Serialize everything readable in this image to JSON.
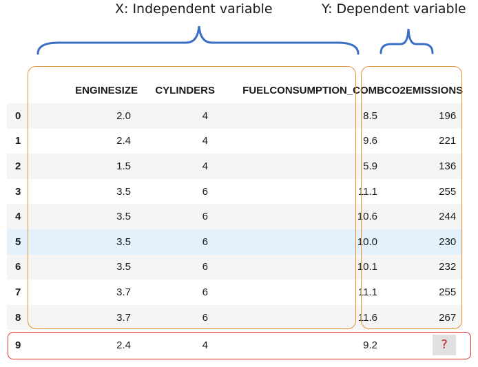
{
  "annotations": {
    "x_label": "X: Independent variable",
    "y_label": "Y: Dependent variable",
    "bracket_color": "#3a6fc4",
    "group_outline_color": "#e69138",
    "new_row_outline_color": "#e03131"
  },
  "table": {
    "columns": [
      "ENGINESIZE",
      "CYLINDERS",
      "FUELCONSUMPTION_COMB",
      "CO2EMISSIONS"
    ],
    "rows": [
      {
        "index": "0",
        "enginesize": "2.0",
        "cylinders": "4",
        "fuel": "8.5",
        "co2": "196"
      },
      {
        "index": "1",
        "enginesize": "2.4",
        "cylinders": "4",
        "fuel": "9.6",
        "co2": "221"
      },
      {
        "index": "2",
        "enginesize": "1.5",
        "cylinders": "4",
        "fuel": "5.9",
        "co2": "136"
      },
      {
        "index": "3",
        "enginesize": "3.5",
        "cylinders": "6",
        "fuel": "11.1",
        "co2": "255"
      },
      {
        "index": "4",
        "enginesize": "3.5",
        "cylinders": "6",
        "fuel": "10.6",
        "co2": "244"
      },
      {
        "index": "5",
        "enginesize": "3.5",
        "cylinders": "6",
        "fuel": "10.0",
        "co2": "230"
      },
      {
        "index": "6",
        "enginesize": "3.5",
        "cylinders": "6",
        "fuel": "10.1",
        "co2": "232"
      },
      {
        "index": "7",
        "enginesize": "3.7",
        "cylinders": "6",
        "fuel": "11.1",
        "co2": "255"
      },
      {
        "index": "8",
        "enginesize": "3.7",
        "cylinders": "6",
        "fuel": "11.6",
        "co2": "267"
      },
      {
        "index": "9",
        "enginesize": "2.4",
        "cylinders": "4",
        "fuel": "9.2",
        "co2": "?"
      }
    ]
  }
}
